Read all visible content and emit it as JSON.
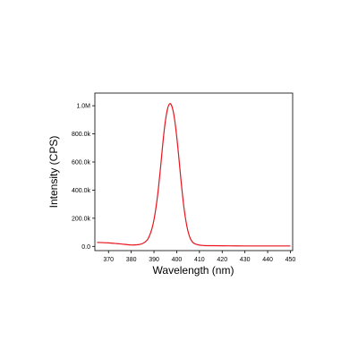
{
  "chart_data": {
    "type": "line",
    "xlabel": "Wavelength (nm)",
    "ylabel": "Intensity (CPS)",
    "xlim": [
      364,
      451
    ],
    "ylim": [
      -30000,
      1090000
    ],
    "x_ticks": [
      370,
      380,
      390,
      400,
      410,
      420,
      430,
      440,
      450
    ],
    "x_tick_labels": [
      "370",
      "380",
      "390",
      "400",
      "410",
      "420",
      "430",
      "440",
      "450"
    ],
    "y_ticks": [
      0,
      200000,
      400000,
      600000,
      800000,
      1000000
    ],
    "y_tick_labels": [
      "0.0",
      "200.0k",
      "400.0k",
      "600.0k",
      "800.0k",
      "1.0M"
    ],
    "grid": false,
    "line_color": "#e8141e",
    "series": [
      {
        "x": [
          365,
          370,
          375,
          380,
          383,
          385,
          387,
          388,
          389,
          390,
          391,
          392,
          393,
          394,
          395,
          396,
          397,
          398,
          399,
          400,
          401,
          402,
          403,
          404,
          405,
          406,
          407,
          408,
          410,
          412,
          415,
          420,
          430,
          440,
          450
        ],
        "values": [
          28000,
          25000,
          18000,
          10000,
          12000,
          20000,
          45000,
          75000,
          120000,
          190000,
          290000,
          420000,
          580000,
          750000,
          890000,
          980000,
          1015000,
          990000,
          910000,
          780000,
          620000,
          450000,
          300000,
          185000,
          105000,
          55000,
          30000,
          18000,
          9000,
          6000,
          5000,
          4000,
          3000,
          3000,
          3000
        ]
      }
    ]
  }
}
